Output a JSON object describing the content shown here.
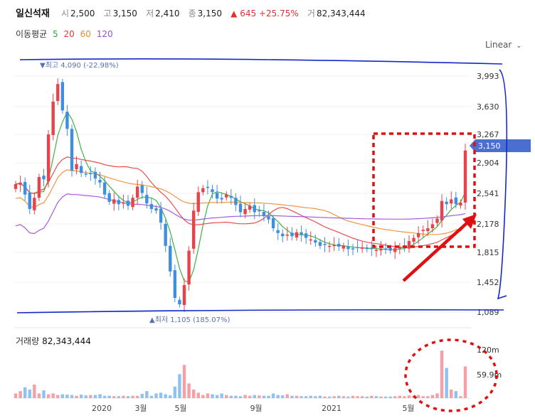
{
  "header": {
    "name": "일신석재",
    "open_label": "시",
    "open": "2,500",
    "high_label": "고",
    "high": "3,150",
    "low_label": "저",
    "low": "2,410",
    "close_label": "종",
    "close": "3,150",
    "change": "▲ 645 +25.75%",
    "volume_label": "거",
    "volume": "82,343,444"
  },
  "moving_average": {
    "label": "이동평균",
    "periods": [
      {
        "text": "5",
        "color": "#2ea82e"
      },
      {
        "text": "20",
        "color": "#e8383b"
      },
      {
        "text": "60",
        "color": "#f08a2c"
      },
      {
        "text": "120",
        "color": "#9a4dd8"
      }
    ]
  },
  "scale_selector": {
    "label": "Linear"
  },
  "colors": {
    "up": "#e8434a",
    "down": "#3f8fe0",
    "vol_up": "#f4a0a4",
    "vol_down": "#8ec2f0",
    "annotation_blue": "#1428c8",
    "annotation_red": "#e01010",
    "price_tag": "#4a6fd0"
  },
  "volume_panel": {
    "label": "거래량",
    "value": "82,343,444"
  },
  "chart_data": {
    "type": "candlestick",
    "y_ticks": [
      "3,993",
      "3,630",
      "3,267",
      "2,904",
      "2,541",
      "2,178",
      "1,815",
      "1,452",
      "1,089"
    ],
    "ylim": [
      1089,
      4230
    ],
    "x_ticks": [
      "2020",
      "3월",
      "5월",
      "9월",
      "2021",
      "5월"
    ],
    "high_label": "▼최고 4,090 (-22.98%)",
    "low_label": "▲최저 1,105 (185.07%)",
    "current_price_tag": "3,150",
    "volume_ticks": [
      "120m",
      "59.9m"
    ],
    "volume_max": 140,
    "closes": [
      2730,
      2750,
      2600,
      2420,
      2560,
      2820,
      2790,
      3350,
      3760,
      3980,
      3650,
      3420,
      2900,
      2980,
      2870,
      2860,
      2860,
      2800,
      2750,
      2600,
      2510,
      2540,
      2480,
      2500,
      2460,
      2560,
      2700,
      2620,
      2490,
      2420,
      2400,
      2250,
      1960,
      1640,
      1310,
      1230,
      1470,
      1900,
      2400,
      2630,
      2680,
      2690,
      2630,
      2550,
      2540,
      2600,
      2560,
      2470,
      2380,
      2420,
      2460,
      2380,
      2400,
      2330,
      2290,
      2180,
      2120,
      2080,
      2100,
      2080,
      2130,
      2100,
      2060,
      2040,
      2000,
      1960,
      1970,
      1960,
      1970,
      1950,
      1960,
      1920,
      1920,
      1940,
      1940,
      1920,
      1920,
      1910,
      1920,
      1910,
      1900,
      1930,
      1940,
      1950,
      2020,
      2060,
      2120,
      2160,
      2180,
      2230,
      2300,
      2520,
      2480,
      2540,
      2480,
      2500,
      3150
    ],
    "volumes": [
      12,
      18,
      28,
      22,
      35,
      12,
      20,
      10,
      12,
      8,
      10,
      9,
      8,
      6,
      9,
      7,
      8,
      8,
      10,
      6,
      6,
      5,
      5,
      6,
      5,
      6,
      6,
      11,
      18,
      6,
      12,
      14,
      10,
      7,
      30,
      62,
      86,
      38,
      22,
      14,
      8,
      12,
      10,
      8,
      12,
      8,
      6,
      6,
      5,
      8,
      6,
      8,
      7,
      6,
      6,
      12,
      8,
      7,
      10,
      6,
      6,
      5,
      5,
      6,
      5,
      6,
      4,
      4,
      5,
      6,
      5,
      4,
      6,
      5,
      5,
      4,
      6,
      5,
      4,
      4,
      4,
      5,
      6,
      5,
      7,
      6,
      8,
      5,
      5,
      8,
      12,
      123,
      78,
      22,
      18,
      5,
      82
    ]
  }
}
